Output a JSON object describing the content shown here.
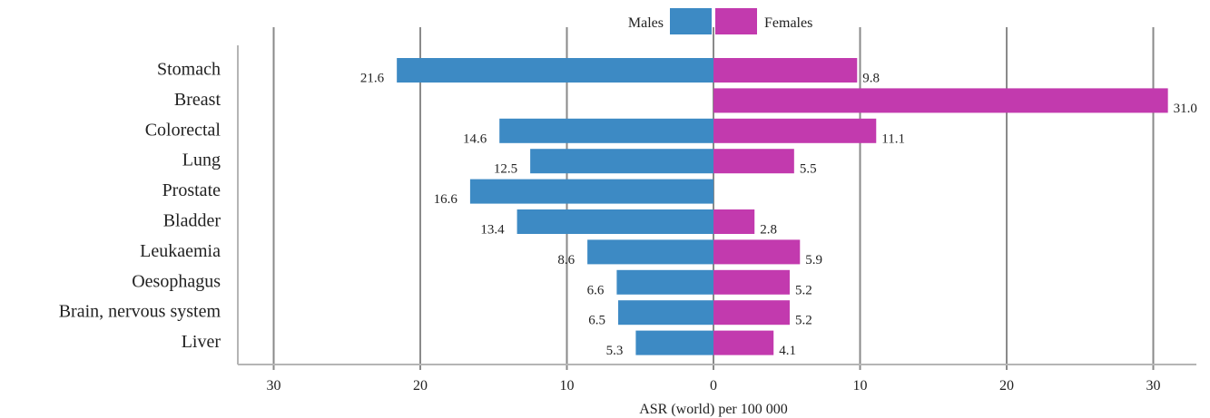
{
  "chart_data": {
    "type": "bar",
    "orientation": "horizontal",
    "layout": "back-to-back",
    "categories": [
      "Stomach",
      "Breast",
      "Colorectal",
      "Lung",
      "Prostate",
      "Bladder",
      "Leukaemia",
      "Oesophagus",
      "Brain, nervous system",
      "Liver"
    ],
    "series": [
      {
        "name": "Males",
        "color": "#3d8ac4",
        "side": "left",
        "values": [
          21.6,
          null,
          14.6,
          12.5,
          16.6,
          13.4,
          8.6,
          6.6,
          6.5,
          5.3
        ],
        "labels": [
          "21.6",
          "",
          "14.6",
          "12.5",
          "16.6",
          "13.4",
          "8.6",
          "6.6",
          "6.5",
          "5.3"
        ]
      },
      {
        "name": "Females",
        "color": "#c23aae",
        "side": "right",
        "values": [
          9.8,
          31.0,
          11.1,
          5.5,
          null,
          2.8,
          5.9,
          5.2,
          5.2,
          4.1
        ],
        "labels": [
          "9.8",
          "31.0",
          "11.1",
          "5.5",
          "",
          "2.8",
          "5.9",
          "5.2",
          "5.2",
          "4.1"
        ]
      }
    ],
    "xlabel": "ASR (world) per 100 000",
    "x_ticks": [
      -30,
      -20,
      -10,
      0,
      10,
      20,
      30
    ],
    "x_tick_labels": [
      "30",
      "20",
      "10",
      "0",
      "10",
      "20",
      "30"
    ],
    "xlim": [
      -30,
      30
    ],
    "grid": "vertical",
    "legend": "top-center"
  }
}
